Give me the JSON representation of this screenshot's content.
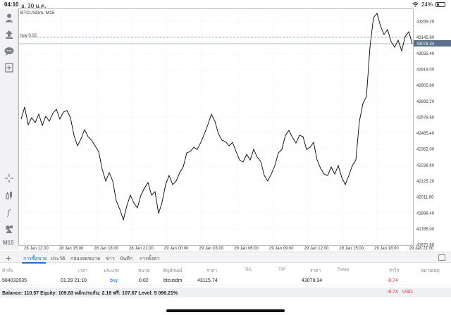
{
  "status_bar": {
    "time": "04:10",
    "date": "อ. 30 ม.ค.",
    "battery": "24%"
  },
  "sidebar": {
    "timeframe": "M15"
  },
  "chart": {
    "symbol_title": "BTCUSDm, M15",
    "order_line_label": "buy 0.02",
    "current_price": "43078.34",
    "price_ticks": [
      "43259.20",
      "43145.80",
      "43032.40",
      "42919.00",
      "42805.60",
      "42692.20",
      "42578.80",
      "42465.40",
      "42352.00",
      "42238.60",
      "42125.20",
      "42011.80",
      "41898.40",
      "41785.00",
      "41671.60"
    ],
    "time_ticks": [
      "28 Jan 12:00",
      "28 Jan 15:00",
      "28 Jan 18:00",
      "28 Jan 21:00",
      "29 Jan 00:00",
      "29 Jan 03:00",
      "29 Jan 06:00",
      "29 Jan 09:00",
      "29 Jan 12:00",
      "29 Jan 15:00",
      "29 Jan 18:00",
      "29 Jan 21:00"
    ],
    "colors": {
      "line": "#000000",
      "grid": "#dcdcdc",
      "order_line": "#8a9bb0",
      "price_tag": "#5a6f8a"
    }
  },
  "tabs": [
    {
      "label": "การซื้อขาย",
      "active": true
    },
    {
      "label": "ประวัติ",
      "active": false
    },
    {
      "label": "กล่องจดหมาย",
      "active": false
    },
    {
      "label": "ข่าว",
      "active": false
    },
    {
      "label": "บันทึก",
      "active": false
    },
    {
      "label": "การตั้งค่า",
      "active": false
    }
  ],
  "positions_table": {
    "headers": [
      "คำสั่ง",
      "เวลา",
      "ประเภท",
      "ขนาด",
      "สัญลักษณ์",
      "ราคา",
      "S/L",
      "T/P",
      "ราคา",
      "Swap",
      "กำไร",
      "หมายเหตุ"
    ],
    "row": {
      "order": "584032035",
      "time": "01.29 21:10",
      "type": "buy",
      "size": "0.02",
      "symbol": "btcusdm",
      "open_price": "43115.74",
      "current_price": "43078.34",
      "profit": "-0.74"
    }
  },
  "balance": {
    "text": "Balance: 110.57 Equity: 109.83 หลักประกัน: 2.16 ฟรี: 107.67 Level: 5 096.21%",
    "pl": "-0.74",
    "currency": "USD"
  }
}
